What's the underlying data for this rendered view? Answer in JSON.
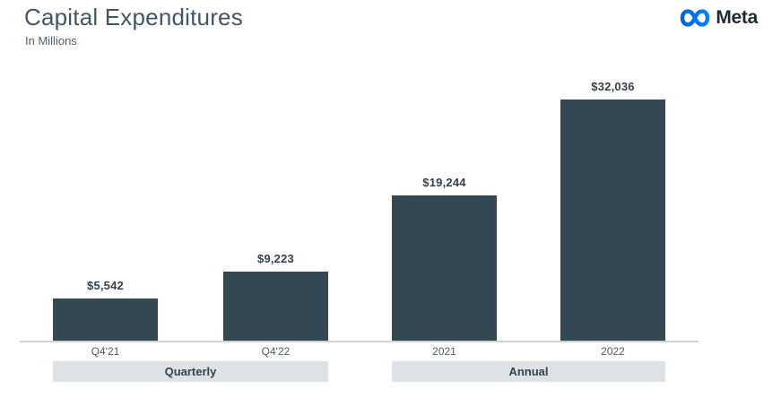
{
  "header": {
    "title": "Capital Expenditures",
    "subtitle": "In Millions",
    "brand": "Meta"
  },
  "colors": {
    "bar": "#344854",
    "value_label": "#33424d",
    "tick_label": "#505c66",
    "band_bg": "#dde2e7",
    "band_text": "#33424d",
    "axis_line": "#d0d3d6",
    "title": "#42566a",
    "subtitle": "#4d5f6e",
    "brand_text": "#1c2b33",
    "brand_blue_start": "#0064e1",
    "brand_blue_end": "#0082fb"
  },
  "chart_data": {
    "type": "bar",
    "title": "Capital Expenditures",
    "units": "In Millions",
    "categories": [
      "Q4'21",
      "Q4'22",
      "2021",
      "2022"
    ],
    "values": [
      5542,
      9223,
      19244,
      32036
    ],
    "value_labels": [
      "$5,542",
      "$9,223",
      "$19,244",
      "$32,036"
    ],
    "groups": [
      {
        "label": "Quarterly",
        "category_indices": [
          0,
          1
        ]
      },
      {
        "label": "Annual",
        "category_indices": [
          2,
          3
        ]
      }
    ],
    "ylim": [
      0,
      32036
    ],
    "grid": false,
    "legend": false,
    "bar_color": "#344854"
  }
}
